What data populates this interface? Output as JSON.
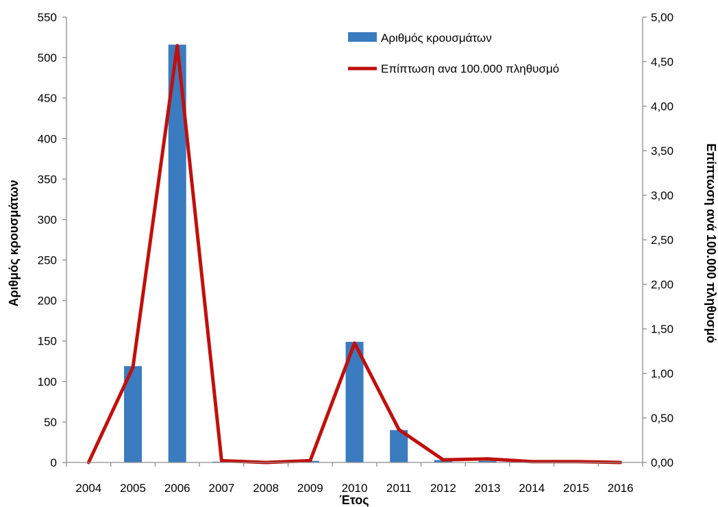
{
  "chart_data": {
    "type": "bar",
    "categories": [
      "2004",
      "2005",
      "2006",
      "2007",
      "2008",
      "2009",
      "2010",
      "2011",
      "2012",
      "2013",
      "2014",
      "2015",
      "2016"
    ],
    "xlabel": "Έτος",
    "ylabel_left": "Αριθμός κρουσμάτων",
    "ylabel_right": "Επίπτωση ανά 100.000 πληθυσμό",
    "ylim_left": [
      0,
      550
    ],
    "ylim_right": [
      0,
      5
    ],
    "yticks_left": [
      "0",
      "50",
      "100",
      "150",
      "200",
      "250",
      "300",
      "350",
      "400",
      "450",
      "500",
      "550"
    ],
    "yticks_right": [
      "0,00",
      "0,50",
      "1,00",
      "1,50",
      "2,00",
      "2,50",
      "3,00",
      "3,50",
      "4,00",
      "4,50",
      "5,00"
    ],
    "grid": false,
    "legend_position": "top-right",
    "series": [
      {
        "name": "Αριθμός κρουσμάτων",
        "type": "bar",
        "axis": "left",
        "color": "#3b7bbf",
        "values": [
          0,
          119,
          516,
          1,
          0,
          2,
          149,
          40,
          3,
          2,
          0,
          0,
          0
        ]
      },
      {
        "name": "Επίπτωση ανα 100.000 πληθυσμό",
        "type": "line",
        "axis": "right",
        "color": "#c0100c",
        "values": [
          0.0,
          1.07,
          4.68,
          0.02,
          0.0,
          0.02,
          1.34,
          0.37,
          0.03,
          0.04,
          0.01,
          0.01,
          0.0
        ]
      }
    ]
  }
}
